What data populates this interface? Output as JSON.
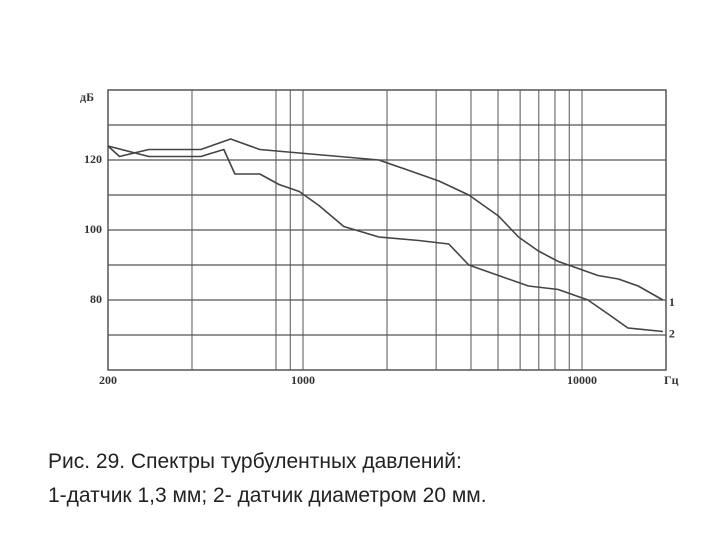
{
  "chart_data": {
    "type": "line",
    "y_label": "дБ",
    "x_label": "Гц",
    "xlim": [
      200,
      20000
    ],
    "ylim": [
      60,
      140
    ],
    "log_x": true,
    "grid": true,
    "xticks": [
      200,
      1000,
      10000
    ],
    "yticks": [
      80,
      100,
      120
    ],
    "xgrid": [
      400,
      800,
      900,
      1000,
      2000,
      3000,
      4000,
      5000,
      6000,
      7000,
      8000,
      9000,
      10000
    ],
    "ygrid": [
      70,
      80,
      90,
      100,
      110,
      120,
      130
    ],
    "series": [
      {
        "name": "1",
        "color": "#444444",
        "x": [
          200,
          220,
          280,
          430,
          550,
          700,
          970,
          1350,
          1870,
          2400,
          3070,
          3930,
          5020,
          5920,
          6980,
          8220,
          9700,
          11400,
          13500,
          15900,
          19500
        ],
        "values": [
          124,
          121,
          123,
          123,
          126,
          123,
          122,
          121,
          120,
          117,
          114,
          110,
          104,
          98,
          94,
          91,
          89,
          87,
          86,
          84,
          80
        ]
      },
      {
        "name": "2",
        "color": "#444444",
        "x": [
          200,
          280,
          430,
          520,
          570,
          700,
          820,
          970,
          1140,
          1400,
          1870,
          2600,
          3330,
          3930,
          5020,
          6430,
          8220,
          10500,
          12400,
          14600,
          19500
        ],
        "values": [
          124,
          121,
          121,
          123,
          116,
          116,
          113,
          111,
          107,
          101,
          98,
          97,
          96,
          90,
          87,
          84,
          83,
          80,
          76,
          72,
          71
        ]
      }
    ],
    "caption": [
      "Рис. 29. Спектры турбулентных давлений:",
      "1-датчик 1,3 мм; 2- датчик диаметром 20 мм."
    ]
  }
}
